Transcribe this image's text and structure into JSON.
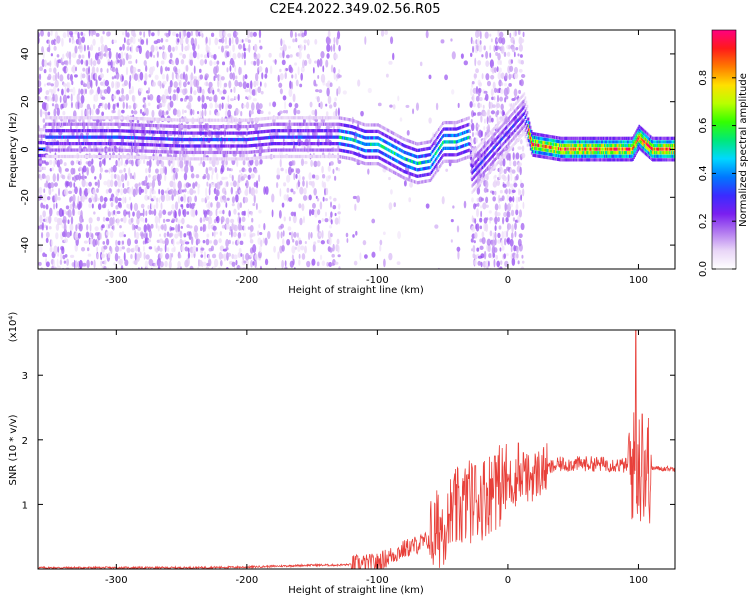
{
  "figure_title": "C2E4.2022.349.02.56.R05",
  "colors": {
    "snr_line": "#e8403a",
    "ridge": "#e8403a",
    "colorbar": [
      "#ffffff",
      "#e9d6f7",
      "#b27af0",
      "#7a1ff0",
      "#3a2cff",
      "#0077ff",
      "#00d8ff",
      "#00e87a",
      "#33ff00",
      "#b8ff00",
      "#ffe000",
      "#ff7a00",
      "#ff1a1a",
      "#ff0080"
    ]
  },
  "chart_data": [
    {
      "type": "heatmap",
      "xlabel": "Height of straight line (km)",
      "ylabel": "Frequency (Hz)",
      "xlim": [
        -360,
        128
      ],
      "ylim": [
        -50,
        50
      ],
      "x_ticks": [
        -300,
        -200,
        -100,
        0,
        100
      ],
      "y_ticks": [
        -40,
        -20,
        0,
        20,
        40
      ],
      "colorbar": {
        "label": "Normalized spectral amplitude",
        "range": [
          0,
          1
        ],
        "ticks": [
          "0.0",
          "0.2",
          "0.4",
          "0.6",
          "0.8"
        ]
      },
      "ridge_points": [
        [
          -355,
          5
        ],
        [
          -300,
          5
        ],
        [
          -250,
          4
        ],
        [
          -200,
          4
        ],
        [
          -180,
          5
        ],
        [
          -150,
          5
        ],
        [
          -130,
          5
        ],
        [
          -120,
          4
        ],
        [
          -110,
          2
        ],
        [
          -100,
          2
        ],
        [
          -90,
          -1
        ],
        [
          -80,
          -4
        ],
        [
          -70,
          -6
        ],
        [
          -60,
          -5
        ],
        [
          -50,
          3
        ],
        [
          -40,
          3
        ],
        [
          -30,
          5
        ],
        [
          -28,
          -10
        ],
        [
          12,
          15
        ],
        [
          18,
          2
        ],
        [
          40,
          0
        ],
        [
          60,
          0
        ],
        [
          80,
          0
        ],
        [
          95,
          0
        ],
        [
          100,
          5
        ],
        [
          110,
          0
        ],
        [
          128,
          0
        ]
      ]
    },
    {
      "type": "line",
      "xlabel": "Height of straight line (km)",
      "ylabel": "SNR (10 * v/v)",
      "y_multiplier": "(x10⁴)",
      "xlim": [
        -360,
        128
      ],
      "ylim": [
        0,
        3.7
      ],
      "x_ticks": [
        -300,
        -200,
        -100,
        0,
        100
      ],
      "y_ticks": [
        1,
        2,
        3
      ],
      "envelope": [
        [
          -360,
          0.02
        ],
        [
          -300,
          0.02
        ],
        [
          -250,
          0.02
        ],
        [
          -200,
          0.03
        ],
        [
          -150,
          0.06
        ],
        [
          -130,
          0.06
        ],
        [
          -110,
          0.08
        ],
        [
          -100,
          0.1
        ],
        [
          -90,
          0.2
        ],
        [
          -80,
          0.3
        ],
        [
          -60,
          0.45
        ],
        [
          -50,
          0.7
        ],
        [
          -40,
          0.9
        ],
        [
          -30,
          1.05
        ],
        [
          -20,
          1.1
        ],
        [
          -10,
          1.25
        ],
        [
          0,
          1.35
        ],
        [
          10,
          1.35
        ],
        [
          20,
          1.45
        ],
        [
          30,
          1.55
        ],
        [
          40,
          1.62
        ],
        [
          60,
          1.63
        ],
        [
          80,
          1.62
        ],
        [
          90,
          1.6
        ],
        [
          95,
          1.6
        ],
        [
          100,
          1.6
        ],
        [
          105,
          1.58
        ],
        [
          110,
          1.56
        ],
        [
          128,
          1.55
        ]
      ],
      "peaks": [
        {
          "x": -55,
          "y": 0.55
        },
        {
          "x": -45,
          "y": 0.85
        },
        {
          "x": -30,
          "y": 1.4
        },
        {
          "x": -25,
          "y": 1.6
        },
        {
          "x": -10,
          "y": 1.75
        },
        {
          "x": 8,
          "y": 1.95
        },
        {
          "x": 12,
          "y": 1.8
        },
        {
          "x": 98,
          "y": 3.7
        },
        {
          "x": 103,
          "y": 2.4
        }
      ]
    }
  ]
}
